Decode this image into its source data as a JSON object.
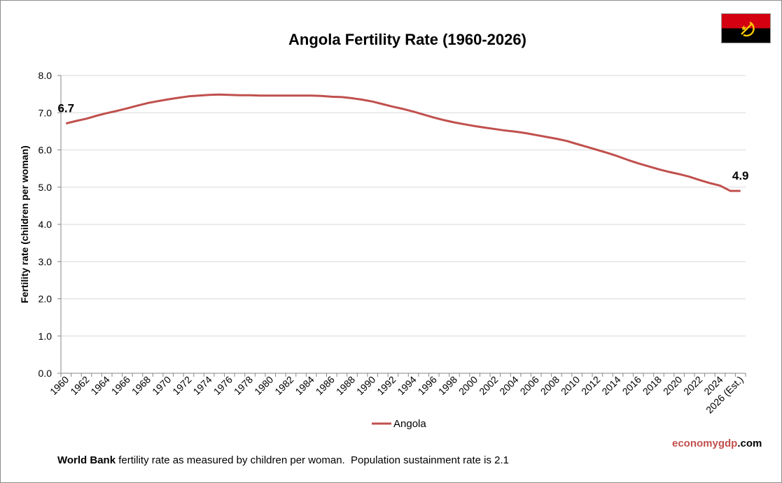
{
  "chart_data": {
    "type": "line",
    "title": "Angola Fertility Rate (1960-2026)",
    "xlabel": "",
    "ylabel": "Fertility rate (children per woman)",
    "ylim": [
      0,
      8
    ],
    "yticks": [
      "0.0",
      "1.0",
      "2.0",
      "3.0",
      "4.0",
      "5.0",
      "6.0",
      "7.0",
      "8.0"
    ],
    "grid": true,
    "legend_position": "bottom",
    "categories": [
      "1960",
      "1961",
      "1962",
      "1963",
      "1964",
      "1965",
      "1966",
      "1967",
      "1968",
      "1969",
      "1970",
      "1971",
      "1972",
      "1973",
      "1974",
      "1975",
      "1976",
      "1977",
      "1978",
      "1979",
      "1980",
      "1981",
      "1982",
      "1983",
      "1984",
      "1985",
      "1986",
      "1987",
      "1988",
      "1989",
      "1990",
      "1991",
      "1992",
      "1993",
      "1994",
      "1995",
      "1996",
      "1997",
      "1998",
      "1999",
      "2000",
      "2001",
      "2002",
      "2003",
      "2004",
      "2005",
      "2006",
      "2007",
      "2008",
      "2009",
      "2010",
      "2011",
      "2012",
      "2013",
      "2014",
      "2015",
      "2016",
      "2017",
      "2018",
      "2019",
      "2020",
      "2021",
      "2022",
      "2023",
      "2024",
      "2025",
      "2026 (Est.)"
    ],
    "xtick_labels": [
      "1960",
      "1962",
      "1964",
      "1966",
      "1968",
      "1970",
      "1972",
      "1974",
      "1976",
      "1978",
      "1980",
      "1982",
      "1984",
      "1986",
      "1988",
      "1990",
      "1992",
      "1994",
      "1996",
      "1998",
      "2000",
      "2002",
      "2004",
      "2006",
      "2008",
      "2010",
      "2012",
      "2014",
      "2016",
      "2018",
      "2020",
      "2022",
      "2024",
      "2026 (Est.)"
    ],
    "series": [
      {
        "name": "Angola",
        "color": "#c0504d",
        "values": [
          6.71,
          6.78,
          6.84,
          6.92,
          6.99,
          7.05,
          7.12,
          7.19,
          7.26,
          7.31,
          7.36,
          7.4,
          7.44,
          7.46,
          7.48,
          7.49,
          7.48,
          7.47,
          7.47,
          7.46,
          7.46,
          7.46,
          7.46,
          7.46,
          7.46,
          7.45,
          7.43,
          7.42,
          7.39,
          7.35,
          7.3,
          7.23,
          7.16,
          7.1,
          7.03,
          6.95,
          6.87,
          6.8,
          6.74,
          6.69,
          6.64,
          6.6,
          6.56,
          6.52,
          6.49,
          6.45,
          6.4,
          6.35,
          6.3,
          6.24,
          6.16,
          6.08,
          6.0,
          5.92,
          5.83,
          5.73,
          5.64,
          5.56,
          5.48,
          5.41,
          5.35,
          5.28,
          5.19,
          5.11,
          5.04,
          4.9,
          4.9
        ]
      }
    ],
    "annotations": [
      {
        "text": "6.7",
        "at": "1960"
      },
      {
        "text": "4.9",
        "at": "2026 (Est.)"
      }
    ]
  },
  "flag": {
    "name": "angola-flag-icon",
    "colors": {
      "top": "#d40011",
      "bottom": "#000000",
      "emblem": "#ffcc00"
    }
  },
  "footer": {
    "source_bold": "World Bank",
    "source_text": " fertility rate as measured by children per woman.  Population sustainment rate is 2.1",
    "brand_red": "economy",
    "brand_red2": "gdp",
    "brand_black": ".com"
  }
}
